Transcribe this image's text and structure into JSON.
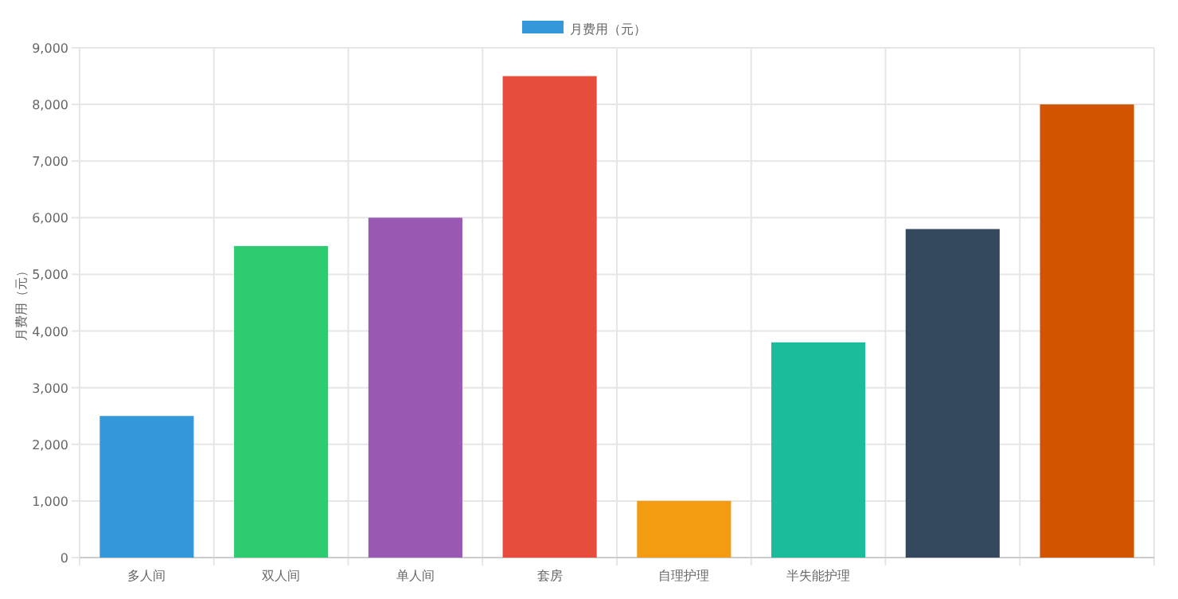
{
  "chart_data": {
    "type": "bar",
    "categories": [
      "多人间",
      "双人间",
      "单人间",
      "套房",
      "自理护理",
      "半失能护理",
      null,
      null
    ],
    "series": [
      {
        "name": "月费用（元）",
        "color": "#3498db",
        "colors": [
          "#3498db",
          "#2ecc71",
          "#9b59b6",
          "#e74c3c",
          "#f39c12",
          "#1abc9c",
          "#34495e",
          "#d35400"
        ],
        "values": [
          2500,
          5500,
          6000,
          8500,
          1000,
          3800,
          5800,
          8000
        ]
      }
    ],
    "ylabel": "月费用（元）",
    "ylim": [
      0,
      9000
    ],
    "yticks": [
      {
        "value": 0,
        "label": "0"
      },
      {
        "value": 1000,
        "label": "1,000"
      },
      {
        "value": 2000,
        "label": "2,000"
      },
      {
        "value": 3000,
        "label": "3,000"
      },
      {
        "value": 4000,
        "label": "4,000"
      },
      {
        "value": 5000,
        "label": "5,000"
      },
      {
        "value": 6000,
        "label": "6,000"
      },
      {
        "value": 7000,
        "label": "7,000"
      },
      {
        "value": 8000,
        "label": "8,000"
      },
      {
        "value": 9000,
        "label": "9,000"
      }
    ],
    "grid": true,
    "legend": "top"
  }
}
